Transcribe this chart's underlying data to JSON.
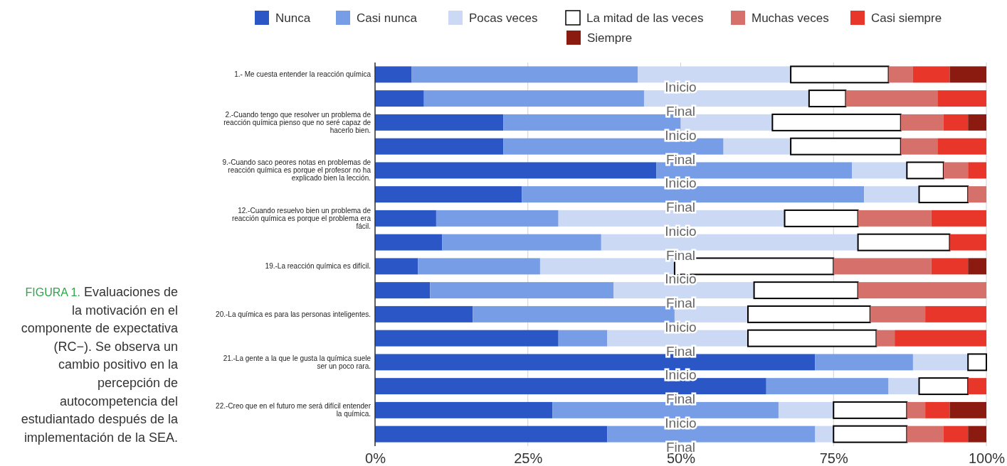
{
  "chart_data": {
    "type": "bar",
    "orientation": "horizontal",
    "stacked": true,
    "categories": [
      "1.- Me cuesta entender la reacción química",
      null,
      "2.-Cuando tengo que resolver un problema de reacción química pienso que no seré capaz de hacerlo bien.",
      null,
      "9.-Cuando saco peores notas en problemas de reacción química es porque el profesor no ha explicado bien la lección.",
      null,
      "12.-Cuando resuelvo bien un problema de reacción química es porque el problema era fácil.",
      null,
      "19.-La reacción química es difícil.",
      null,
      "20.-La química es para las personas inteligentes.",
      null,
      "21.-La gente a la que le gusta la química suele ser un poco rara.",
      null,
      "22.-Creo que en el futuro me será difícil entender la química.",
      null
    ],
    "series": [
      {
        "name": "Nunca",
        "color": "#2a56c6",
        "values": [
          6,
          8,
          21,
          21,
          46,
          24,
          10,
          11,
          7,
          9,
          16,
          30,
          72,
          64,
          29,
          38
        ]
      },
      {
        "name": "Casi nunca",
        "color": "#779de6",
        "values": [
          37,
          36,
          29,
          36,
          32,
          56,
          20,
          26,
          20,
          30,
          33,
          8,
          16,
          20,
          37,
          34
        ]
      },
      {
        "name": "Pocas veces",
        "color": "#ccd9f5",
        "values": [
          25,
          27,
          15,
          11,
          9,
          9,
          37,
          42,
          22,
          23,
          12,
          23,
          9,
          5,
          9,
          3
        ]
      },
      {
        "name": "La mitad de las veces",
        "color": "#ffffff",
        "values": [
          16,
          6,
          21,
          18,
          6,
          8,
          12,
          15,
          26,
          17,
          20,
          21,
          3,
          8,
          12,
          12
        ]
      },
      {
        "name": "Muchas veces",
        "color": "#d6706b",
        "values": [
          4,
          15,
          7,
          6,
          4,
          3,
          12,
          0,
          16,
          21,
          9,
          3,
          0,
          0,
          3,
          6
        ]
      },
      {
        "name": "Casi siempre",
        "color": "#e8362b",
        "values": [
          6,
          8,
          4,
          8,
          3,
          0,
          9,
          6,
          6,
          0,
          10,
          15,
          0,
          3,
          4,
          4
        ]
      },
      {
        "name": "Siempre",
        "color": "#8b1a10",
        "values": [
          6,
          0,
          3,
          0,
          0,
          0,
          0,
          0,
          3,
          0,
          0,
          0,
          0,
          0,
          6,
          3
        ]
      }
    ],
    "xlim": [
      0,
      100
    ],
    "xticks": [
      {
        "value": 0,
        "label": "0%"
      },
      {
        "value": 25,
        "label": "25%"
      },
      {
        "value": 50,
        "label": "50%"
      },
      {
        "value": 75,
        "label": "75%"
      },
      {
        "value": 100,
        "label": "100%"
      }
    ],
    "grid": "x",
    "legend": "top",
    "annotations": [
      "FIGURA 1. Evaluaciones de la motivación en el componente de expectativa (RC−). Se observa un cambio positivo en la percepción de autocompetencia del estudiantado después de la implementación de la SEA.",
      "Inicio",
      "Final",
      "Inicio",
      "Final",
      "Inicio",
      "Final",
      "Inicio",
      "Final",
      "Inicio",
      "Final",
      "Inicio",
      "Final",
      "Inicio",
      "Final",
      "Inicio",
      "Final"
    ]
  }
}
